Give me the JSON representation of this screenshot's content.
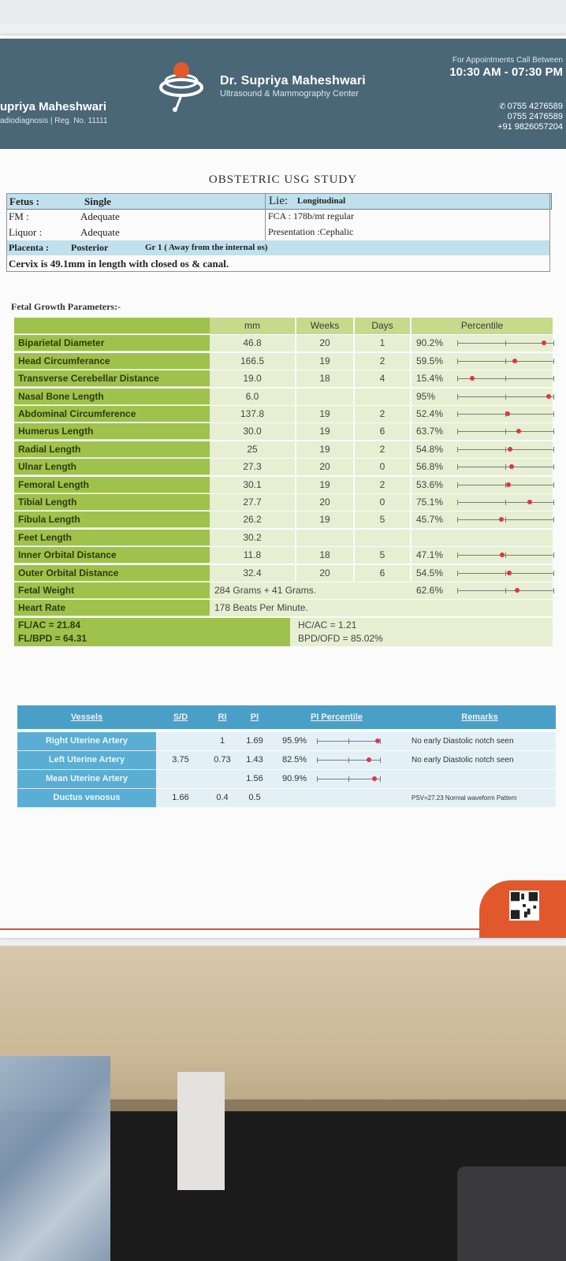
{
  "header": {
    "doctor_name": "Dr. Supriya Maheshwari",
    "center_name": "Ultrasound & Mammography Center",
    "left_name": "upriya Maheshwari",
    "left_sub": "adiodiagnosis | Reg. No. 11111",
    "appt_label": "For Appointments Call Between",
    "appt_time": "10:30 AM - 07:30 PM",
    "phones": [
      "0755 4276589",
      "0755 2476589",
      "+91 9826057204"
    ]
  },
  "study_title": "OBSTETRIC USG STUDY",
  "general": {
    "fetus_label": "Fetus :",
    "fetus_value": "Single",
    "lie_label": "Lie:",
    "lie_value": "Longitudinal",
    "fm_label": "FM :",
    "fm_value": "Adequate",
    "fca_text": "FCA : 178b/mt  regular",
    "liquor_label": "Liquor :",
    "liquor_value": "Adequate",
    "presentation_text": "Presentation :Cephalic",
    "placenta_label": "Placenta :",
    "placenta_value": "Posterior",
    "placenta_grade": "Gr  1  ( Away from the internal os)",
    "cervix_text": "Cervix is  49.1mm  in length with closed os & canal."
  },
  "growth": {
    "title": "Fetal Growth Parameters:-",
    "headers": [
      "mm",
      "Weeks",
      "Days",
      "Percentile"
    ],
    "rows": [
      {
        "name": "Biparietal Diameter",
        "mm": "46.8",
        "weeks": "20",
        "days": "1",
        "pct": "90.2%",
        "pct_value": 90.2
      },
      {
        "name": "Head Circumferance",
        "mm": "166.5",
        "weeks": "19",
        "days": "2",
        "pct": "59.5%",
        "pct_value": 59.5
      },
      {
        "name": "Transverse Cerebellar Distance",
        "mm": "19.0",
        "weeks": "18",
        "days": "4",
        "pct": "15.4%",
        "pct_value": 15.4
      },
      {
        "name": "Nasal Bone Length",
        "mm": "6.0",
        "weeks": "",
        "days": "",
        "pct": "95%",
        "pct_value": 95
      },
      {
        "name": "Abdominal Circumference",
        "mm": "137.8",
        "weeks": "19",
        "days": "2",
        "pct": "52.4%",
        "pct_value": 52.4
      },
      {
        "name": "Humerus Length",
        "mm": "30.0",
        "weeks": "19",
        "days": "6",
        "pct": "63.7%",
        "pct_value": 63.7
      },
      {
        "name": "Radial Length",
        "mm": "25",
        "weeks": "19",
        "days": "2",
        "pct": "54.8%",
        "pct_value": 54.8
      },
      {
        "name": "Ulnar Length",
        "mm": "27.3",
        "weeks": "20",
        "days": "0",
        "pct": "56.8%",
        "pct_value": 56.8
      },
      {
        "name": "Femoral Length",
        "mm": "30.1",
        "weeks": "19",
        "days": "2",
        "pct": "53.6%",
        "pct_value": 53.6
      },
      {
        "name": "Tibial Length",
        "mm": "27.7",
        "weeks": "20",
        "days": "0",
        "pct": "75.1%",
        "pct_value": 75.1
      },
      {
        "name": "Fibula Length",
        "mm": "26.2",
        "weeks": "19",
        "days": "5",
        "pct": "45.7%",
        "pct_value": 45.7
      },
      {
        "name": "Feet Length",
        "mm": "30.2",
        "weeks": "",
        "days": "",
        "pct": "",
        "pct_value": null
      },
      {
        "name": "Inner Orbital Distance",
        "mm": "11.8",
        "weeks": "18",
        "days": "5",
        "pct": "47.1%",
        "pct_value": 47.1
      },
      {
        "name": "Outer Orbital Distance",
        "mm": "32.4",
        "weeks": "20",
        "days": "6",
        "pct": "54.5%",
        "pct_value": 54.5
      }
    ],
    "fetal_weight_label": "Fetal Weight",
    "fetal_weight_value": "284 Grams + 41 Grams.",
    "fetal_weight_pct": "62.6%",
    "fetal_weight_pct_value": 62.6,
    "heart_rate_label": "Heart Rate",
    "heart_rate_value": "178 Beats Per Minute.",
    "fl_ac": "FL/AC = 21.84",
    "fl_bpd": "FL/BPD = 64.31",
    "hc_ac": "HC/AC = 1.21",
    "bpd_ofd": "BPD/OFD = 85.02%"
  },
  "vessels": {
    "headers": [
      "Vessels",
      "S/D",
      "RI",
      "PI",
      "PI Percentile",
      "Remarks"
    ],
    "rows": [
      {
        "name": "Right Uterine Artery",
        "sd": "",
        "ri": "1",
        "pi": "1.69",
        "pct": "95.9%",
        "pct_value": 95.9,
        "remark": "No early Diastolic notch seen"
      },
      {
        "name": "Left Uterine Artery",
        "sd": "3.75",
        "ri": "0.73",
        "pi": "1.43",
        "pct": "82.5%",
        "pct_value": 82.5,
        "remark": "No early Diastolic notch seen"
      },
      {
        "name": "Mean Uterine Artery",
        "sd": "",
        "ri": "",
        "pi": "1.56",
        "pct": "90.9%",
        "pct_value": 90.9,
        "remark": ""
      },
      {
        "name": "Ductus venosus",
        "sd": "1.66",
        "ri": "0.4",
        "pi": "0.5",
        "pct": "",
        "pct_value": null,
        "remark": "PSV=27.23  Normal waveform Pattern"
      }
    ]
  },
  "colors": {
    "header": "#4a6778",
    "green": "#9ec24b",
    "blue": "#4a9fc6",
    "accent": "#e2582d",
    "dot": "#e0334a"
  }
}
